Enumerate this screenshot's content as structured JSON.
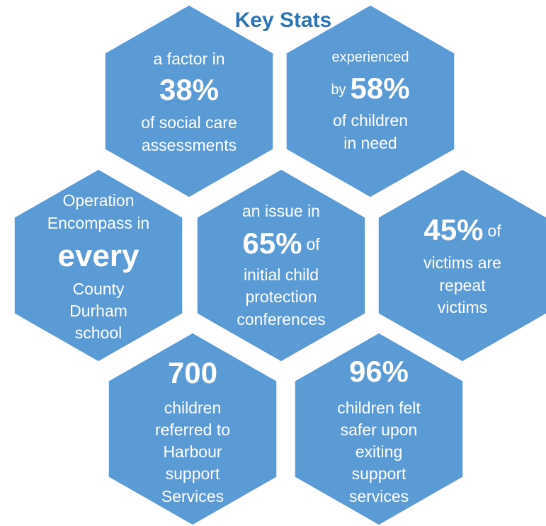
{
  "title": "Key Stats",
  "hexes": [
    {
      "lines": [
        [
          {
            "text": "a factor in"
          }
        ],
        [
          {
            "text": "38%",
            "bold": true
          }
        ],
        [
          {
            "text": "of social care"
          }
        ],
        [
          {
            "text": "assessments"
          }
        ]
      ]
    },
    {
      "lines": [
        [
          {
            "text": "experienced",
            "small": true
          }
        ],
        [
          {
            "text": "by",
            "small": true
          },
          {
            "text": "58%",
            "bold": true
          }
        ],
        [
          {
            "text": "of children"
          }
        ],
        [
          {
            "text": "in need"
          }
        ]
      ]
    },
    {
      "lines": [
        [
          {
            "text": "Operation"
          }
        ],
        [
          {
            "text": "Encompass in"
          }
        ],
        [
          {
            "text": "every",
            "bold": true
          }
        ],
        [
          {
            "text": "County"
          }
        ],
        [
          {
            "text": "Durham"
          }
        ],
        [
          {
            "text": "school"
          }
        ]
      ]
    },
    {
      "lines": [
        [
          {
            "text": "an issue in"
          }
        ],
        [
          {
            "text": "65%",
            "bold": true
          },
          {
            "text": "of"
          }
        ],
        [
          {
            "text": "initial child"
          }
        ],
        [
          {
            "text": "protection"
          }
        ],
        [
          {
            "text": "conferences"
          }
        ]
      ]
    },
    {
      "lines": [
        [
          {
            "text": "45%",
            "bold": true
          },
          {
            "text": "of"
          }
        ],
        [
          {
            "text": "victims are"
          }
        ],
        [
          {
            "text": "repeat"
          }
        ],
        [
          {
            "text": "victims"
          }
        ]
      ]
    },
    {
      "lines": [
        [
          {
            "text": "700",
            "bold": true
          }
        ],
        [
          {
            "text": "children"
          }
        ],
        [
          {
            "text": "referred to"
          }
        ],
        [
          {
            "text": "Harbour"
          }
        ],
        [
          {
            "text": "support"
          }
        ],
        [
          {
            "text": "Services"
          }
        ]
      ]
    },
    {
      "lines": [
        [
          {
            "text": "96%",
            "bold": true
          }
        ],
        [
          {
            "text": "children felt"
          }
        ],
        [
          {
            "text": "safer upon"
          }
        ],
        [
          {
            "text": "exiting"
          }
        ],
        [
          {
            "text": "support"
          }
        ],
        [
          {
            "text": "services"
          }
        ]
      ]
    }
  ]
}
